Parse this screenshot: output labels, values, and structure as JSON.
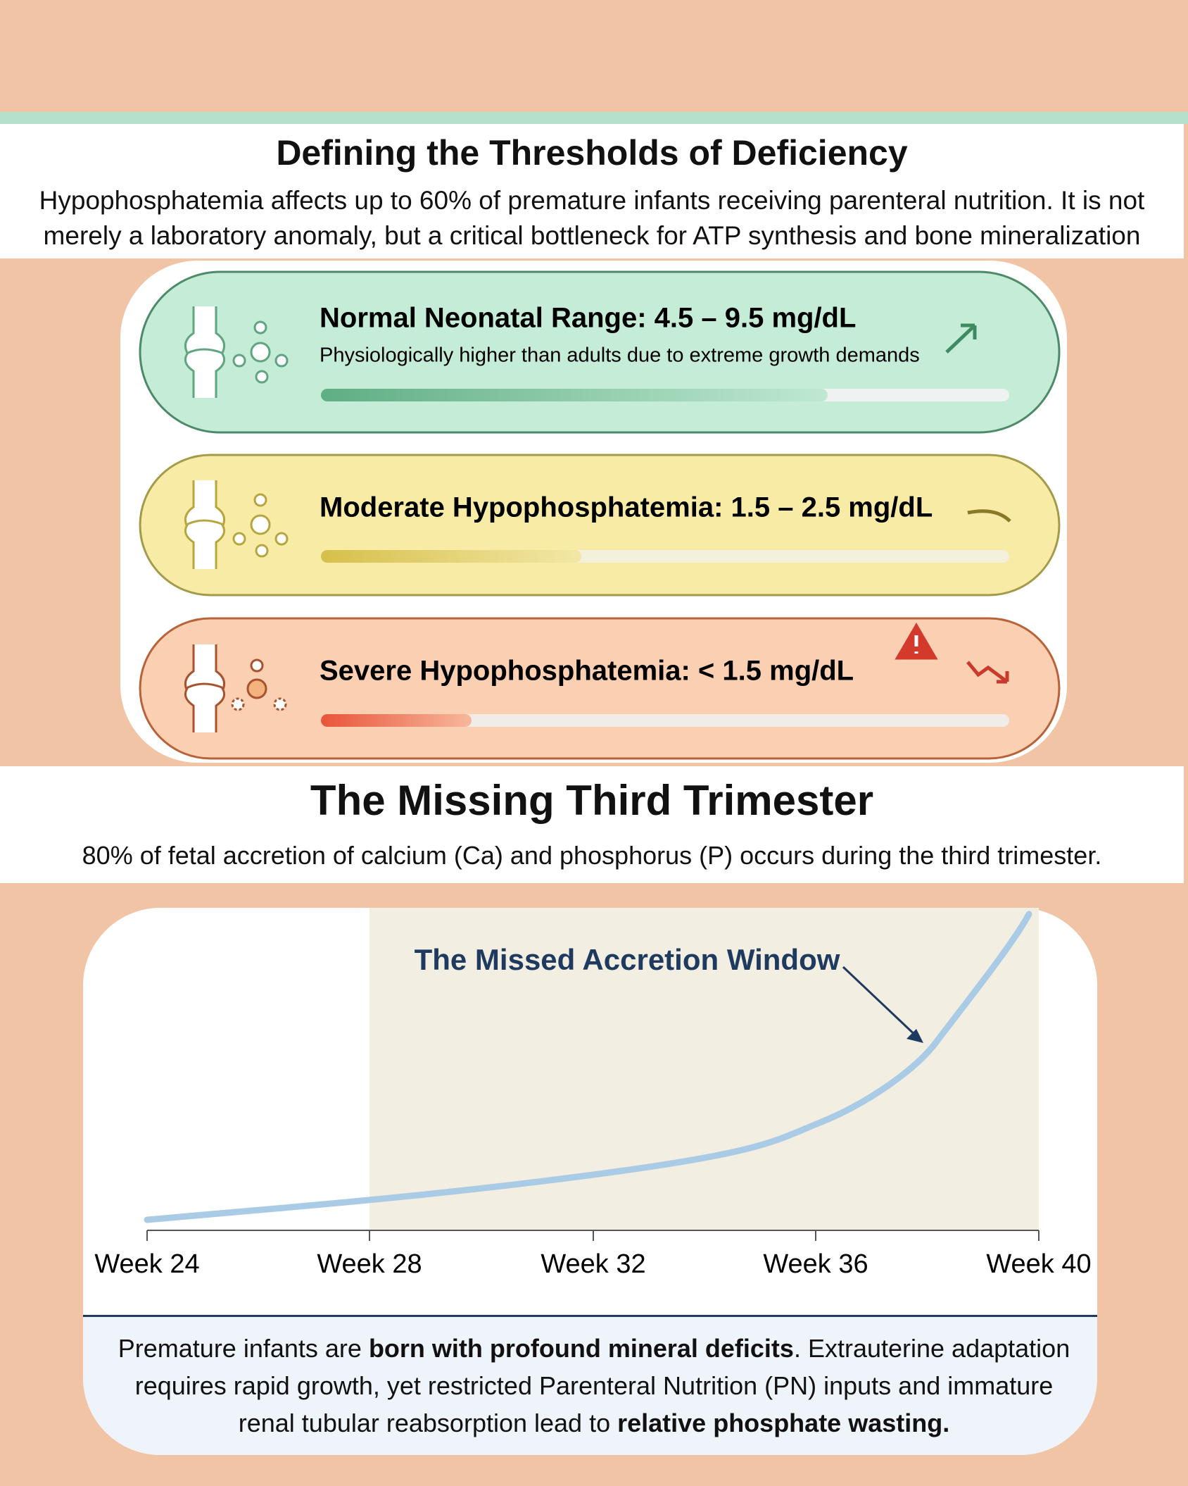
{
  "section1": {
    "title": "Defining the Thresholds of Deficiency",
    "description": "Hypophosphatemia affects up to 60% of premature infants receiving parenteral nutrition. It is not merely a laboratory anomaly, but a critical bottleneck for ATP synthesis and bone mineralization"
  },
  "thresholds": [
    {
      "label": "Normal Neonatal Range: 4.5 – 9.5 mg/dL",
      "note": "Physiologically higher than adults due to extreme growth demands"
    },
    {
      "label": "Moderate Hypophosphatemia: 1.5 – 2.5 mg/dL"
    },
    {
      "label": "Severe Hypophosphatemia: < 1.5 mg/dL"
    }
  ],
  "section2": {
    "title": "The Missing Third Trimester",
    "description": "80% of fetal accretion of calcium (Ca) and phosphorus (P) occurs during the third trimester."
  },
  "timeline": {
    "annotation": "The Missed Accretion Window",
    "ticks": [
      "Week 24",
      "Week 28",
      "Week 32",
      "Week 36",
      "Week 40"
    ]
  },
  "footer": {
    "segments": [
      "Premature infants are ",
      "born with profound mineral deficits",
      ". Extrauterine adaptation requires rapid growth, yet restricted Parenteral Nutrition (PN) inputs and immature renal tubular reabsorption lead to ",
      "relative phosphate wasting."
    ]
  }
}
